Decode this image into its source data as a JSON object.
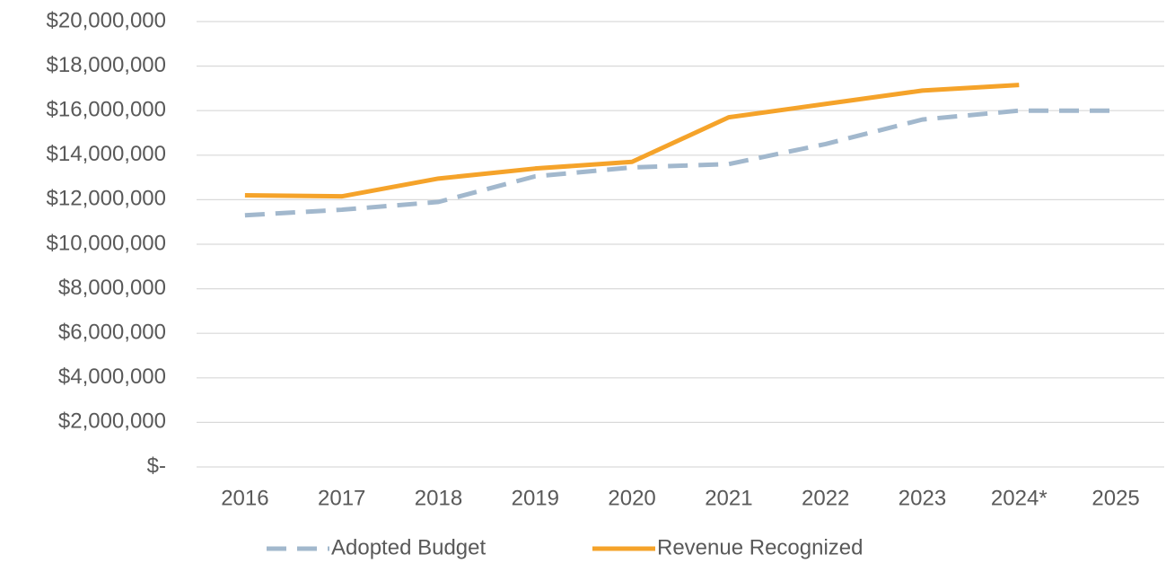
{
  "chart_data": {
    "type": "line",
    "categories": [
      "2016",
      "2017",
      "2018",
      "2019",
      "2020",
      "2021",
      "2022",
      "2023",
      "2024*",
      "2025"
    ],
    "series": [
      {
        "name": "Adopted Budget",
        "color": "#a2b8cd",
        "dashed": true,
        "values": [
          11300000,
          11550000,
          11900000,
          13050000,
          13450000,
          13600000,
          14500000,
          15600000,
          16000000,
          16000000
        ]
      },
      {
        "name": "Revenue Recognized",
        "color": "#f5a32a",
        "dashed": false,
        "values": [
          12200000,
          12150000,
          12950000,
          13400000,
          13700000,
          15700000,
          16300000,
          16900000,
          17150000,
          null
        ]
      }
    ],
    "ylim": [
      0,
      20000000
    ],
    "yticks": [
      {
        "value": 0,
        "label": "$-"
      },
      {
        "value": 2000000,
        "label": "$2,000,000"
      },
      {
        "value": 4000000,
        "label": "$4,000,000"
      },
      {
        "value": 6000000,
        "label": "$6,000,000"
      },
      {
        "value": 8000000,
        "label": "$8,000,000"
      },
      {
        "value": 10000000,
        "label": "$10,000,000"
      },
      {
        "value": 12000000,
        "label": "$12,000,000"
      },
      {
        "value": 14000000,
        "label": "$14,000,000"
      },
      {
        "value": 16000000,
        "label": "$16,000,000"
      },
      {
        "value": 18000000,
        "label": "$18,000,000"
      },
      {
        "value": 20000000,
        "label": "$20,000,000"
      }
    ],
    "grid": true,
    "legend": "bottom"
  }
}
